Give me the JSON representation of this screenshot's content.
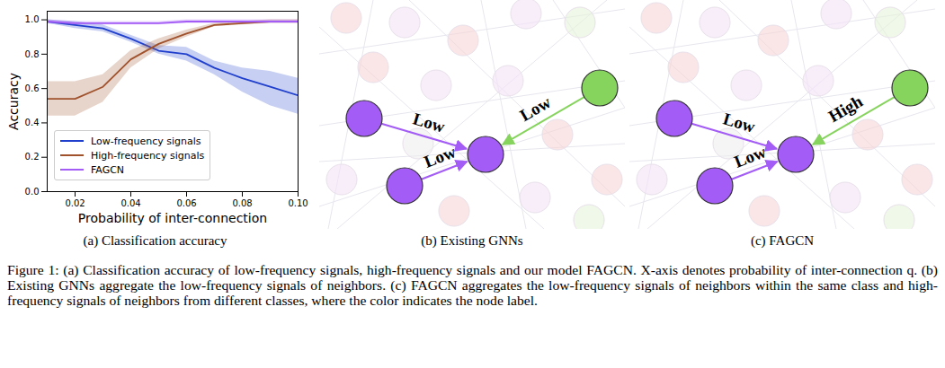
{
  "chart_data": {
    "type": "line",
    "xlabel": "Probability of inter-connection",
    "ylabel": "Accuracy",
    "x": [
      0.01,
      0.02,
      0.03,
      0.04,
      0.05,
      0.06,
      0.07,
      0.08,
      0.09,
      0.1
    ],
    "xlim": [
      0.01,
      0.1
    ],
    "xticks": [
      0.02,
      0.04,
      0.06,
      0.08,
      {
        "value": 0.1,
        "label": "0.10"
      }
    ],
    "ylim": [
      0,
      1.05
    ],
    "yticks": [
      {
        "value": 0,
        "label": "0.0"
      },
      0.2,
      0.4,
      0.6,
      0.8,
      {
        "value": 1,
        "label": "1.0"
      }
    ],
    "legend": "lower left",
    "series": [
      {
        "name": "Low-frequency signals",
        "color": "#1f3fcc",
        "values": [
          0.99,
          0.97,
          0.95,
          0.89,
          0.82,
          0.8,
          0.72,
          0.66,
          0.61,
          0.56
        ],
        "lower": [
          0.98,
          0.95,
          0.93,
          0.87,
          0.8,
          0.76,
          0.68,
          0.58,
          0.5,
          0.45
        ],
        "upper": [
          1.0,
          0.99,
          0.97,
          0.91,
          0.85,
          0.84,
          0.76,
          0.72,
          0.7,
          0.66
        ]
      },
      {
        "name": "High-frequency signals",
        "color": "#a0522d",
        "values": [
          0.54,
          0.54,
          0.61,
          0.77,
          0.86,
          0.92,
          0.97,
          0.98,
          0.99,
          0.99
        ],
        "lower": [
          0.44,
          0.44,
          0.52,
          0.72,
          0.83,
          0.9,
          0.96,
          0.97,
          0.98,
          0.98
        ],
        "upper": [
          0.64,
          0.64,
          0.68,
          0.82,
          0.89,
          0.94,
          0.98,
          0.99,
          1.0,
          1.0
        ]
      },
      {
        "name": "FAGCN",
        "color": "#a35cf5",
        "values": [
          0.99,
          0.98,
          0.98,
          0.98,
          0.98,
          0.99,
          0.99,
          0.99,
          0.99,
          0.99
        ],
        "lower": [
          0.98,
          0.97,
          0.97,
          0.97,
          0.97,
          0.98,
          0.98,
          0.98,
          0.98,
          0.98
        ],
        "upper": [
          1.0,
          0.99,
          0.99,
          0.99,
          0.99,
          1.0,
          1.0,
          1.0,
          1.0,
          1.0
        ]
      }
    ]
  },
  "subcaptions": [
    "(a) Classification accuracy",
    "(b) Existing GNNs",
    "(c) FAGCN"
  ],
  "diagrams": [
    {
      "nodes": [
        {
          "color": "#a35cf5"
        },
        {
          "color": "#a35cf5"
        },
        {
          "color": "#a35cf5"
        },
        {
          "color": "#86d45e"
        }
      ],
      "edges": [
        {
          "from": 0,
          "to": 2,
          "label": "Low"
        },
        {
          "from": 1,
          "to": 2,
          "label": "Low"
        },
        {
          "from": 3,
          "to": 2,
          "label": "Low"
        }
      ]
    },
    {
      "nodes": [
        {
          "color": "#a35cf5"
        },
        {
          "color": "#a35cf5"
        },
        {
          "color": "#a35cf5"
        },
        {
          "color": "#86d45e"
        }
      ],
      "edges": [
        {
          "from": 0,
          "to": 2,
          "label": "Low"
        },
        {
          "from": 1,
          "to": 2,
          "label": "Low"
        },
        {
          "from": 3,
          "to": 2,
          "label": "High"
        }
      ]
    }
  ],
  "caption": "Figure 1: (a) Classification accuracy of low-frequency signals, high-frequency signals and our model FAGCN. X-axis denotes probability of inter-connection q. (b) Existing GNNs aggregate the low-frequency signals of neighbors. (c) FAGCN aggregates the low-frequency signals of neighbors within the same class and high-frequency signals of neighbors from different classes, where the color indicates the node label."
}
